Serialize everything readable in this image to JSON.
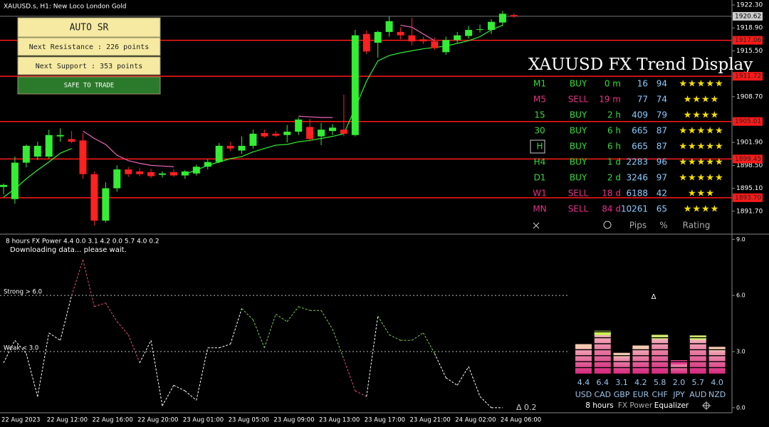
{
  "header": {
    "symbol": "XAUUSD.s, H1:  New Loco London Gold"
  },
  "sr_panel": {
    "title": "AUTO  SR",
    "resistance": "Next Resistance : 226 points",
    "support": "Next Support : 353 points",
    "status": "SAFE TO TRADE"
  },
  "price_chart": {
    "ylim": [
      1888.4,
      1923.04
    ],
    "yticks": [
      {
        "value": 1922.3,
        "label": "1922.30"
      },
      {
        "value": 1918.9,
        "label": "1918.90"
      },
      {
        "value": 1915.5,
        "label": "1915.50"
      },
      {
        "value": 1908.7,
        "label": "1908.70"
      },
      {
        "value": 1901.9,
        "label": "1901.90"
      },
      {
        "value": 1898.5,
        "label": "1898.50"
      },
      {
        "value": 1895.1,
        "label": "1895.10"
      },
      {
        "value": 1891.7,
        "label": "1891.70"
      }
    ],
    "levels": [
      {
        "value": 1917.06,
        "label": "1917.06"
      },
      {
        "value": 1911.72,
        "label": "1911.72"
      },
      {
        "value": 1905.01,
        "label": "1905.01"
      },
      {
        "value": 1899.45,
        "label": "1899.45"
      },
      {
        "value": 1893.7,
        "label": "1893.70"
      }
    ],
    "current_price": {
      "value": 1920.62,
      "label": "1920.62"
    },
    "time_labels": [
      "22 Aug 2023",
      "22 Aug 12:00",
      "22 Aug 16:00",
      "22 Aug 20:00",
      "23 Aug 01:00",
      "23 Aug 05:00",
      "23 Aug 09:00",
      "23 Aug 13:00",
      "23 Aug 17:00",
      "23 Aug 21:00",
      "24 Aug 02:00",
      "24 Aug 06:00"
    ],
    "up_color": "#33ee33",
    "down_color": "#ff2020",
    "candles": {
      "open": [
        1895.3,
        1893.5,
        1898.9,
        1899.8,
        1899.8,
        1902.8,
        1902.4,
        1902.2,
        1897.2,
        1890.3,
        1895.1,
        1897.9,
        1897.6,
        1897.5,
        1897.1,
        1897.5,
        1897.0,
        1897.3,
        1898.3,
        1899.0,
        1901.4,
        1900.7,
        1901.4,
        1903.3,
        1903.2,
        1903.0,
        1903.5,
        1904.2,
        1902.8,
        1903.6,
        1903.8,
        1903.0,
        1918.0,
        1916.7,
        1918.3,
        1918.3,
        1917.8,
        1917.2,
        1916.9,
        1915.3,
        1917.1,
        1917.7,
        1918.6,
        1918.6,
        1919.7,
        1920.8
      ],
      "high": [
        1895.8,
        1899.8,
        1901.6,
        1902.0,
        1903.8,
        1904.0,
        1903.6,
        1903.3,
        1897.6,
        1896.0,
        1898.5,
        1898.3,
        1898.1,
        1898.0,
        1897.6,
        1897.9,
        1897.8,
        1898.6,
        1899.4,
        1901.8,
        1902.0,
        1902.8,
        1903.8,
        1903.8,
        1903.6,
        1904.5,
        1905.6,
        1905.4,
        1904.8,
        1904.6,
        1909.0,
        1918.6,
        1918.5,
        1918.5,
        1920.6,
        1919.0,
        1920.4,
        1917.6,
        1917.5,
        1917.6,
        1918.3,
        1919.2,
        1919.4,
        1920.2,
        1921.4,
        1921.0
      ],
      "low": [
        1894.2,
        1892.8,
        1898.2,
        1899.3,
        1899.5,
        1902.0,
        1901.8,
        1896.5,
        1889.6,
        1890.0,
        1894.6,
        1896.8,
        1896.9,
        1896.6,
        1896.7,
        1896.8,
        1896.5,
        1897.0,
        1897.9,
        1898.8,
        1900.6,
        1900.2,
        1901.0,
        1902.6,
        1902.7,
        1901.9,
        1903.0,
        1902.0,
        1901.5,
        1903.0,
        1902.8,
        1902.8,
        1915.0,
        1914.5,
        1917.6,
        1917.2,
        1916.3,
        1916.5,
        1915.6,
        1914.9,
        1916.7,
        1917.3,
        1918.2,
        1918.0,
        1919.2,
        1920.4
      ],
      "close": [
        1895.6,
        1898.9,
        1901.4,
        1901.4,
        1903.0,
        1903.0,
        1902.0,
        1897.2,
        1890.3,
        1895.1,
        1897.9,
        1897.2,
        1897.2,
        1896.9,
        1897.3,
        1897.0,
        1897.6,
        1898.3,
        1899.0,
        1901.4,
        1901.0,
        1901.4,
        1903.2,
        1902.8,
        1902.9,
        1903.5,
        1905.3,
        1902.4,
        1903.8,
        1904.1,
        1903.2,
        1917.8,
        1915.4,
        1918.3,
        1919.9,
        1917.8,
        1916.9,
        1916.9,
        1915.9,
        1917.1,
        1917.8,
        1918.6,
        1918.7,
        1919.8,
        1921.0,
        1920.6
      ]
    },
    "support_line": {
      "color": "#33ee33",
      "values": [
        1893.8,
        1895.0,
        1896.5,
        1897.8,
        1899.0,
        1900.3,
        1901.0,
        null,
        null,
        null,
        null,
        null,
        null,
        null,
        null,
        null,
        1897.2,
        1897.8,
        1898.5,
        1899.0,
        1899.5,
        1899.8,
        1900.5,
        1901.0,
        1901.5,
        1901.6,
        1902.0,
        1902.2,
        1902.5,
        1902.8,
        1903.2,
        1907.0,
        1911.0,
        1914.0,
        1914.8,
        1915.2,
        1915.5,
        1915.8,
        1916.0,
        1916.2,
        1916.6,
        1917.0,
        1917.6,
        1918.6,
        1919.3,
        null
      ]
    },
    "resistance_line": {
      "color": "#ee66bb",
      "values": [
        null,
        null,
        null,
        null,
        null,
        null,
        null,
        1903.6,
        1902.5,
        1901.6,
        1900.0,
        1899.2,
        1898.8,
        1898.5,
        1898.4,
        1898.3,
        null,
        null,
        null,
        null,
        null,
        null,
        null,
        null,
        null,
        null,
        1905.8,
        1905.7,
        1905.6,
        1905.6,
        null,
        null,
        null,
        null,
        null,
        1919.3,
        1919.0,
        1918.0,
        1917.0,
        null,
        null,
        null,
        null,
        null,
        null,
        null
      ]
    }
  },
  "trend_display": {
    "title": "XAUUSD FX Trend Display",
    "buy_color": "#33dd33",
    "sell_color": "#e8308a",
    "rows": [
      [
        "M1",
        "BUY",
        "0 m",
        16,
        94,
        "★★★★★"
      ],
      [
        "M5",
        "SELL",
        "19 m",
        77,
        74,
        "★★★★"
      ],
      [
        "15",
        "BUY",
        "2 h",
        409,
        79,
        "★★★★"
      ],
      [
        "30",
        "BUY",
        "6 h",
        665,
        87,
        "★★★★★"
      ],
      [
        "H",
        "BUY",
        "6 h",
        665,
        87,
        "★★★★★"
      ],
      [
        "H4",
        "BUY",
        "1 d",
        2283,
        96,
        "★★★★★"
      ],
      [
        "D1",
        "BUY",
        "2 d",
        3246,
        97,
        "★★★★★"
      ],
      [
        "W1",
        "SELL",
        "18 d",
        6188,
        42,
        "★★★"
      ],
      [
        "MN",
        "SELL",
        "84 d",
        10261,
        65,
        "★★★★"
      ]
    ],
    "footer": [
      "Pips",
      "%",
      "Rating"
    ]
  },
  "fx_power": {
    "header": "8 hours FX Power 4.4 0.0 3.1 4.2 0.0 5.7 4.0 0.2",
    "status": "Downloading data... please wait.",
    "ylim": [
      -0.27,
      9.24
    ],
    "yticks": [
      {
        "value": 9,
        "label": "9.0"
      },
      {
        "value": 6,
        "label": "6.0"
      },
      {
        "value": 3,
        "label": "3.0"
      },
      {
        "value": 0,
        "label": "0.0"
      }
    ],
    "strong": {
      "value": 6,
      "label": "Strong > 6.0"
    },
    "weak": {
      "value": 3,
      "label": "Weak < 3.0"
    },
    "values": [
      2.4,
      3.6,
      2.9,
      0.6,
      4.0,
      3.6,
      6.0,
      7.9,
      5.4,
      5.6,
      4.6,
      3.9,
      2.4,
      3.6,
      0.1,
      1.2,
      0.9,
      0.4,
      3.2,
      3.2,
      3.4,
      5.3,
      4.7,
      3.2,
      5.0,
      4.6,
      5.4,
      5.2,
      5.2,
      4.2,
      2.6,
      0.9,
      0.6,
      4.9,
      3.9,
      3.6,
      3.6,
      4.0,
      2.9,
      1.6,
      1.2,
      2.2,
      0.6,
      0.0,
      0.0
    ],
    "colors": [
      "#ffffff",
      "#ffffff",
      "#ffffff",
      "#ffffff",
      "#ffffff",
      "#ffffff",
      "#e0506e",
      "#e0506e",
      "#e0506e",
      "#e0506e",
      "#e0506e",
      "#e0506e",
      "#ffffff",
      "#ffffff",
      "#ffffff",
      "#ffffff",
      "#ffffff",
      "#ffffff",
      "#ffffff",
      "#ffffff",
      "#ffffff",
      "#7acc4a",
      "#7acc4a",
      "#7acc4a",
      "#7acc4a",
      "#7acc4a",
      "#7acc4a",
      "#7acc4a",
      "#7acc4a",
      "#7acc4a",
      "#e0506e",
      "#e0506e",
      "#ffffff",
      "#7acc4a",
      "#7acc4a",
      "#7acc4a",
      "#7acc4a",
      "#7acc4a",
      "#ffffff",
      "#ffffff",
      "#ffffff",
      "#ffffff",
      "#ffffff",
      "#ffffff",
      "#ffffff"
    ],
    "delta_label": "Δ 0.2",
    "delta_marker": "Δ"
  },
  "equalizer": {
    "currencies": [
      "USD",
      "CAD",
      "GBP",
      "EUR",
      "CHF",
      "JPY",
      "AUD",
      "NZD"
    ],
    "values": [
      4.4,
      6.4,
      3.1,
      4.2,
      5.8,
      2.0,
      5.7,
      4.0
    ],
    "value_labels": [
      "4.4",
      "6.4",
      "3.1",
      "4.2",
      "5.8",
      "2.0",
      "5.7",
      "4.0"
    ],
    "cap_colors": [
      "#f4c8b0",
      "#c8f050",
      "#f4c8b0",
      "#f4c8b0",
      "#d8f070",
      "#e83c90",
      "#d8f070",
      "#f4c8b0"
    ],
    "footer": [
      "8 hours",
      "FX Power",
      "Equalizer"
    ]
  }
}
